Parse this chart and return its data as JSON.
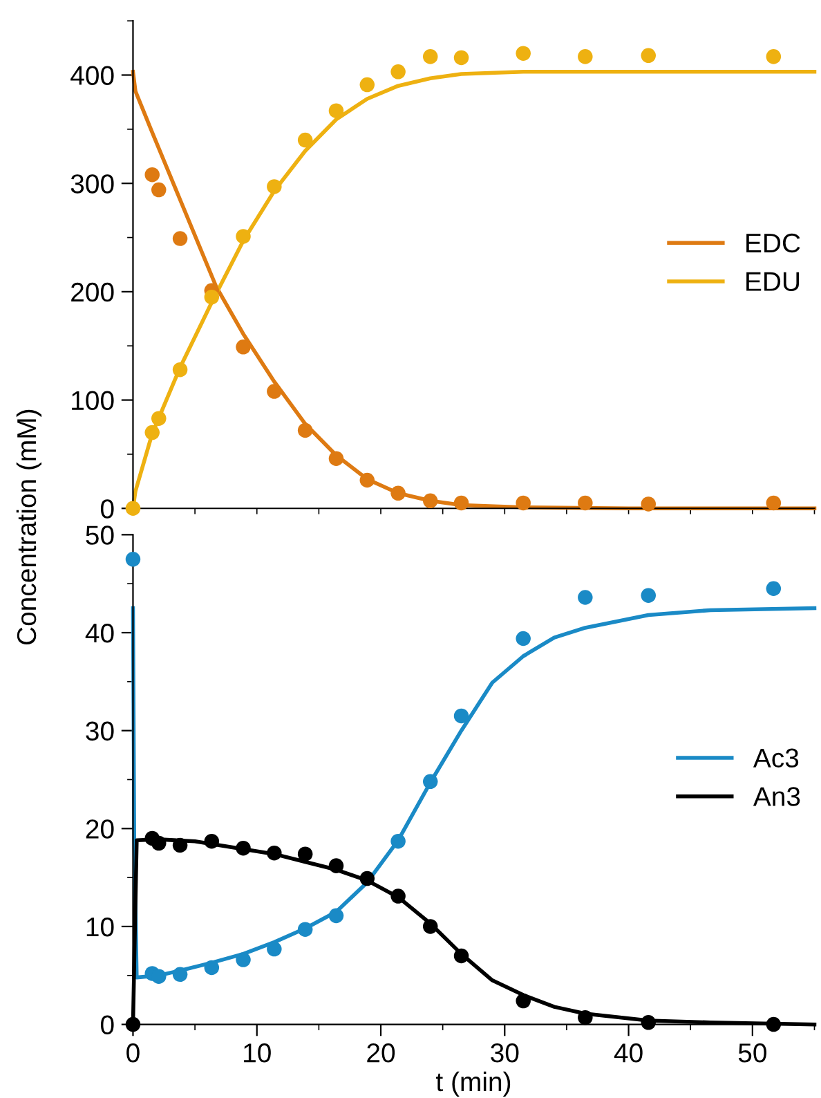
{
  "chart_data": [
    {
      "type": "line",
      "ylabel": "Concentration (mM)",
      "xlim": [
        0,
        55
      ],
      "ylim": [
        0,
        450
      ],
      "xticks": [
        {
          "value": 0,
          "label": null
        },
        {
          "value": 5,
          "label": null
        },
        {
          "value": 10,
          "label": null
        },
        {
          "value": 15,
          "label": null
        },
        {
          "value": 20,
          "label": null
        },
        {
          "value": 25,
          "label": null
        },
        {
          "value": 30,
          "label": null
        },
        {
          "value": 35,
          "label": null
        },
        {
          "value": 40,
          "label": null
        },
        {
          "value": 45,
          "label": null
        },
        {
          "value": 50,
          "label": null
        },
        {
          "value": 55,
          "label": null
        }
      ],
      "yticks": [
        0,
        {
          "value": 50,
          "label": null
        },
        100,
        {
          "value": 150,
          "label": null
        },
        200,
        {
          "value": 250,
          "label": null
        },
        300,
        {
          "value": 350,
          "label": null
        },
        400,
        {
          "value": 450,
          "label": null
        }
      ],
      "tick_labels": "y",
      "legend": "right",
      "grid": false,
      "series": [
        {
          "name": "EDC",
          "color": "#de7a12",
          "x": [
            0,
            0.2,
            1.55,
            3.8,
            6.7,
            8.9,
            11.4,
            13.9,
            16.4,
            18.9,
            21.4,
            24,
            26.5,
            31.5,
            40,
            55
          ],
          "values": [
            403,
            385,
            347,
            285,
            205,
            161,
            117,
            78,
            49,
            27,
            14,
            7,
            3,
            1,
            0,
            0
          ]
        },
        {
          "name": "EDU",
          "color": "#eeb111",
          "x": [
            0,
            0.2,
            1.55,
            3.8,
            6.35,
            8.9,
            11.4,
            13.9,
            16.4,
            18.9,
            21.4,
            24,
            26.5,
            31.5,
            40,
            55
          ],
          "values": [
            0,
            16,
            69,
            130,
            190,
            247,
            293,
            330,
            359,
            378,
            390,
            397,
            401,
            403,
            403,
            403
          ]
        },
        {
          "type": "scatter",
          "color": "#de7a12",
          "marker": "circle",
          "x": [
            1.55,
            2.08,
            3.8,
            6.35,
            8.9,
            11.4,
            13.9,
            16.4,
            18.9,
            21.4,
            24,
            26.5,
            31.5,
            36.5,
            41.6,
            51.7
          ],
          "values": [
            308,
            294,
            249,
            201,
            149,
            108,
            72,
            46,
            26,
            14,
            7,
            5,
            5,
            5,
            4,
            5
          ]
        },
        {
          "type": "scatter",
          "color": "#eeb111",
          "marker": "circle",
          "x": [
            0,
            1.55,
            2.08,
            3.8,
            6.35,
            8.9,
            11.4,
            13.9,
            16.4,
            18.9,
            21.4,
            24,
            26.5,
            31.5,
            36.5,
            41.6,
            51.7
          ],
          "values": [
            0,
            70,
            83,
            128,
            195,
            251,
            297,
            340,
            367,
            391,
            403,
            417,
            416,
            420,
            417,
            418,
            417
          ]
        }
      ]
    },
    {
      "type": "line",
      "xlabel": "t (min)",
      "xlim": [
        0,
        55
      ],
      "ylim": [
        0,
        50
      ],
      "xticks": [
        0,
        {
          "value": 5,
          "label": null
        },
        10,
        {
          "value": 15,
          "label": null
        },
        20,
        {
          "value": 25,
          "label": null
        },
        30,
        {
          "value": 35,
          "label": null
        },
        40,
        {
          "value": 45,
          "label": null
        },
        50,
        {
          "value": 55,
          "label": null
        }
      ],
      "yticks": [
        0,
        {
          "value": 5,
          "label": null
        },
        10,
        {
          "value": 15,
          "label": null
        },
        20,
        {
          "value": 25,
          "label": null
        },
        30,
        {
          "value": 35,
          "label": null
        },
        40,
        {
          "value": 45,
          "label": null
        },
        50
      ],
      "legend": "right",
      "grid": false,
      "series": [
        {
          "name": "Ac3",
          "color": "#1a8ac6",
          "x": [
            0,
            0.1,
            0.3,
            2.08,
            3.8,
            6.35,
            8.9,
            11.4,
            13.9,
            16.4,
            18.9,
            21.4,
            24,
            26.5,
            29,
            31.5,
            34,
            36.5,
            41.6,
            46.6,
            55
          ],
          "values": [
            42.5,
            19,
            4.8,
            5.0,
            5.5,
            6.3,
            7.2,
            8.4,
            9.8,
            11.5,
            14.5,
            18.8,
            24.7,
            30,
            34.9,
            37.6,
            39.5,
            40.5,
            41.8,
            42.3,
            42.5
          ]
        },
        {
          "name": "An3",
          "color": "#000000",
          "x": [
            0,
            0.3,
            2,
            5,
            8.9,
            11.4,
            13.9,
            16.4,
            18.9,
            21.4,
            24,
            26.5,
            29,
            31.5,
            34,
            36.5,
            41.6,
            46.6,
            55
          ],
          "values": [
            0,
            18.8,
            18.9,
            18.7,
            17.9,
            17.4,
            16.6,
            15.8,
            14.7,
            13.0,
            10.3,
            7.2,
            4.5,
            3.0,
            1.8,
            1.1,
            0.4,
            0.2,
            0
          ]
        },
        {
          "type": "scatter",
          "color": "#1a8ac6",
          "marker": "circle",
          "x": [
            0,
            1.55,
            2.08,
            3.8,
            6.35,
            8.9,
            11.4,
            13.9,
            16.4,
            18.9,
            21.4,
            24,
            26.5,
            31.5,
            36.5,
            41.6,
            51.7
          ],
          "values": [
            47.5,
            5.2,
            4.9,
            5.1,
            5.8,
            6.6,
            7.7,
            9.7,
            11.1,
            null,
            18.7,
            24.8,
            31.5,
            39.4,
            43.6,
            43.8,
            44.5
          ]
        },
        {
          "type": "scatter",
          "color": "#000000",
          "marker": "circle",
          "x": [
            0,
            1.55,
            2.08,
            3.8,
            6.35,
            8.9,
            11.4,
            13.9,
            16.4,
            18.9,
            21.4,
            24,
            26.5,
            31.5,
            36.5,
            41.6,
            51.7
          ],
          "values": [
            0,
            19.0,
            18.5,
            18.3,
            18.7,
            18.0,
            17.5,
            17.4,
            16.2,
            14.9,
            13.1,
            10.0,
            7.0,
            2.4,
            0.7,
            0.2,
            0
          ]
        }
      ]
    }
  ]
}
